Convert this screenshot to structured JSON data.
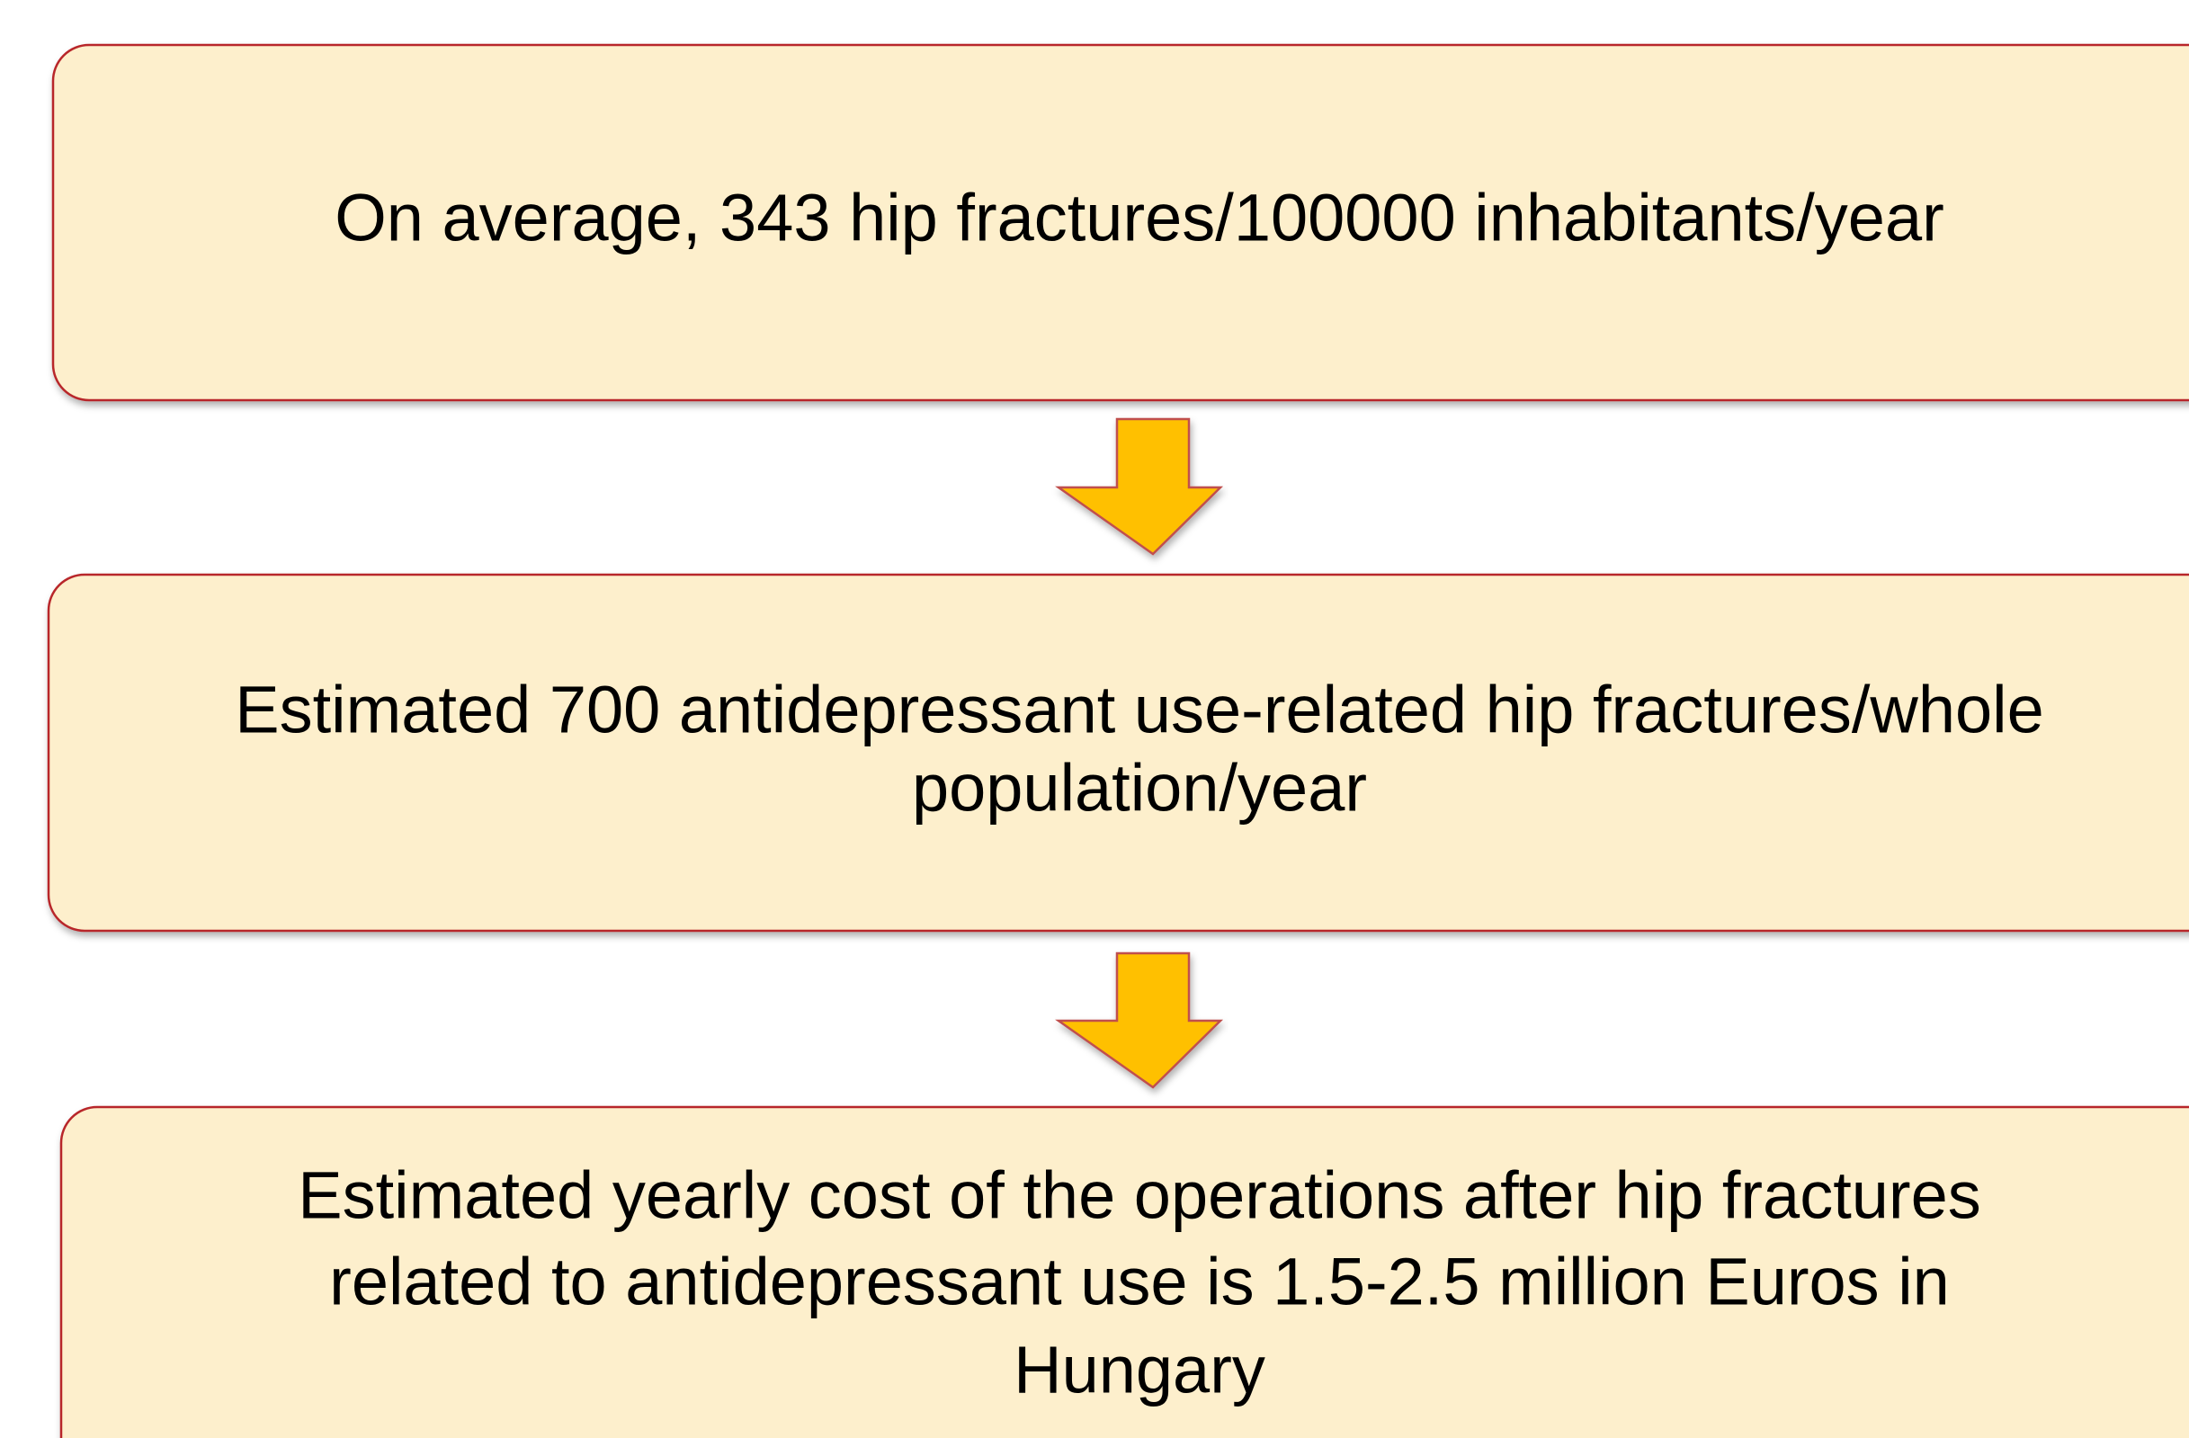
{
  "boxes": [
    {
      "lines": [
        "On average, 343 hip fractures/100000 inhabitants/year"
      ]
    },
    {
      "lines": [
        "Estimated 700 antidepressant use-related hip fractures/whole",
        "population/year"
      ]
    },
    {
      "lines": [
        "Estimated yearly cost of the operations after hip fractures",
        "related to antidepressant use is 1.5-2.5 million Euros in",
        "Hungary"
      ]
    }
  ]
}
